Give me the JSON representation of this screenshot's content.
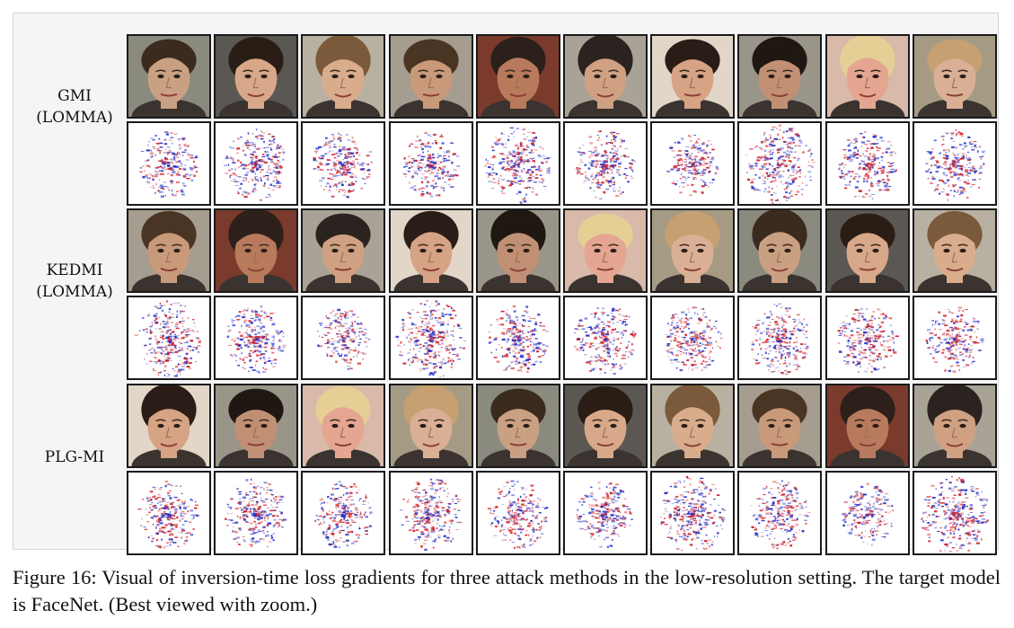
{
  "figure": {
    "rows": [
      {
        "label_lines": [
          "GMI",
          "(LOMMA)"
        ],
        "columns": 10
      },
      {
        "label_lines": [
          "KEDMI",
          "(LOMMA)"
        ],
        "columns": 10
      },
      {
        "label_lines": [
          "PLG-MI"
        ],
        "columns": 10
      }
    ],
    "caption": "Figure 16: Visual of inversion-time loss gradients for three attack methods in the low-resolution setting. The target model is FaceNet. (Best viewed with zoom.)",
    "gradient_colors": {
      "positive": "#d0242b",
      "negative": "#2431c8",
      "background": "#ffffff"
    }
  }
}
